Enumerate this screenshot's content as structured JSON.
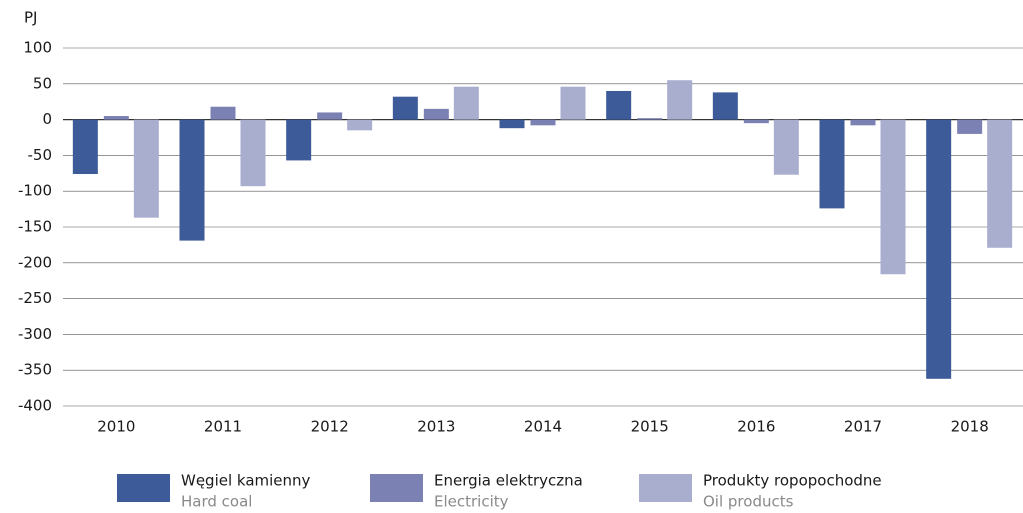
{
  "chart_data": {
    "type": "bar",
    "y_label": "PJ",
    "categories": [
      "2010",
      "2011",
      "2012",
      "2013",
      "2014",
      "2015",
      "2016",
      "2017",
      "2018"
    ],
    "series": [
      {
        "name": "Węgiel kamienny",
        "subname": "Hard coal",
        "color": "#3d5a99",
        "values": [
          -76,
          -169,
          -57,
          32,
          -12,
          40,
          38,
          -124,
          -362
        ]
      },
      {
        "name": "Energia elektryczna",
        "subname": "Electricity",
        "color": "#7b82b3",
        "values": [
          5,
          18,
          10,
          15,
          -8,
          2,
          -5,
          -8,
          -20
        ]
      },
      {
        "name": "Produkty ropopochodne",
        "subname": "Oil products",
        "color": "#a9aecf",
        "values": [
          -137,
          -93,
          -15,
          46,
          46,
          55,
          -77,
          -216,
          -179
        ]
      }
    ],
    "ylim": [
      -400,
      100
    ],
    "yticks": [
      -400,
      -350,
      -300,
      -250,
      -200,
      -150,
      -100,
      -50,
      0,
      50,
      100
    ],
    "grid": true
  }
}
